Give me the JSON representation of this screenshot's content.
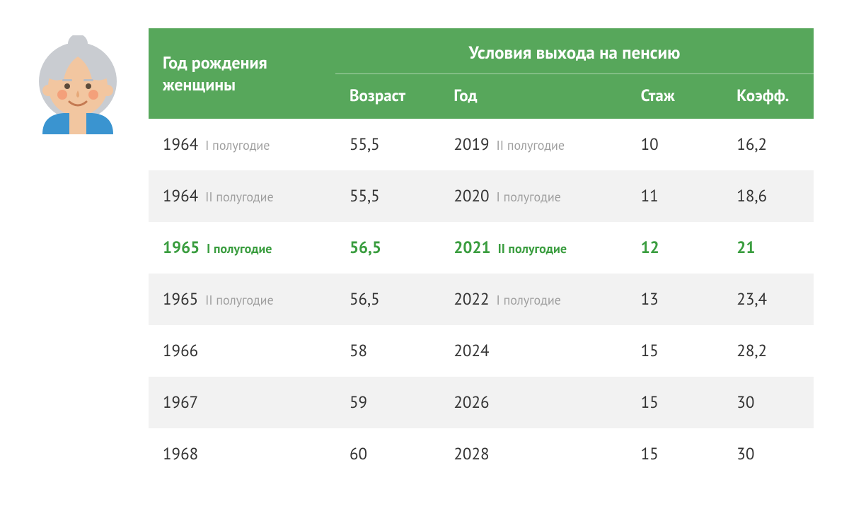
{
  "colors": {
    "header_bg": "#57a75b",
    "header_text": "#ffffff",
    "body_text": "#333333",
    "muted_text": "#9e9e9e",
    "highlight_text": "#3a9d3f",
    "stripe_bg": "#f2f2f2",
    "page_bg": "#ffffff"
  },
  "table": {
    "header": {
      "birth_year": "Год рождения женщины",
      "conditions": "Условия выхода на пенсию",
      "age": "Возраст",
      "ret_year": "Год",
      "stage": "Стаж",
      "coef": "Коэфф."
    },
    "rows": [
      {
        "birth_year": "1964",
        "birth_half": "I полугодие",
        "age": "55,5",
        "ret_year": "2019",
        "ret_half": "II полугодие",
        "stage": "10",
        "coef": "16,2",
        "stripe": false,
        "highlight": false
      },
      {
        "birth_year": "1964",
        "birth_half": "II полугодие",
        "age": "55,5",
        "ret_year": "2020",
        "ret_half": "I полугодие",
        "stage": "11",
        "coef": "18,6",
        "stripe": true,
        "highlight": false
      },
      {
        "birth_year": "1965",
        "birth_half": "I полугодие",
        "age": "56,5",
        "ret_year": "2021",
        "ret_half": "II полугодие",
        "stage": "12",
        "coef": "21",
        "stripe": false,
        "highlight": true
      },
      {
        "birth_year": "1965",
        "birth_half": "II полугодие",
        "age": "56,5",
        "ret_year": "2022",
        "ret_half": "I полугодие",
        "stage": "13",
        "coef": "23,4",
        "stripe": true,
        "highlight": false
      },
      {
        "birth_year": "1966",
        "birth_half": "",
        "age": "58",
        "ret_year": "2024",
        "ret_half": "",
        "stage": "15",
        "coef": "28,2",
        "stripe": false,
        "highlight": false
      },
      {
        "birth_year": "1967",
        "birth_half": "",
        "age": "59",
        "ret_year": "2026",
        "ret_half": "",
        "stage": "15",
        "coef": "30",
        "stripe": true,
        "highlight": false
      },
      {
        "birth_year": "1968",
        "birth_half": "",
        "age": "60",
        "ret_year": "2028",
        "ret_half": "",
        "stage": "15",
        "coef": "30",
        "stripe": false,
        "highlight": false
      }
    ]
  }
}
